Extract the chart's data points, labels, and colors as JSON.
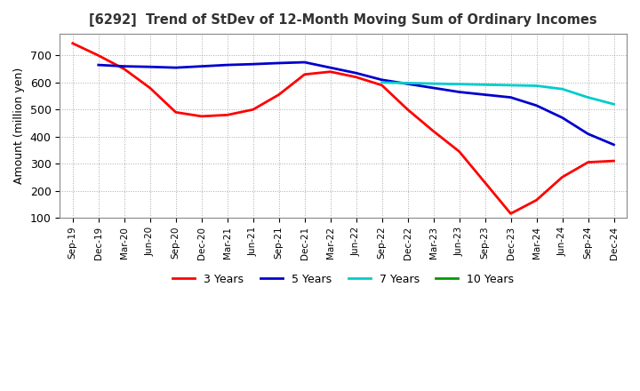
{
  "title": "[6292]  Trend of StDev of 12-Month Moving Sum of Ordinary Incomes",
  "ylabel": "Amount (million yen)",
  "ylim": [
    100,
    780
  ],
  "yticks": [
    100,
    200,
    300,
    400,
    500,
    600,
    700
  ],
  "background_color": "#ffffff",
  "plot_bg_color": "#ffffff",
  "grid_color": "#888888",
  "x_labels": [
    "Sep-19",
    "Dec-19",
    "Mar-20",
    "Jun-20",
    "Sep-20",
    "Dec-20",
    "Mar-21",
    "Jun-21",
    "Sep-21",
    "Dec-21",
    "Mar-22",
    "Jun-22",
    "Sep-22",
    "Dec-22",
    "Mar-23",
    "Jun-23",
    "Sep-23",
    "Dec-23",
    "Mar-24",
    "Jun-24",
    "Sep-24",
    "Dec-24"
  ],
  "series": {
    "3 Years": {
      "color": "#ff0000",
      "values": [
        745,
        700,
        650,
        580,
        490,
        475,
        480,
        500,
        555,
        630,
        640,
        620,
        590,
        500,
        420,
        345,
        230,
        115,
        165,
        250,
        305,
        310
      ]
    },
    "5 Years": {
      "color": "#0000cc",
      "values": [
        null,
        665,
        660,
        658,
        655,
        660,
        665,
        668,
        672,
        675,
        655,
        635,
        610,
        595,
        580,
        565,
        555,
        545,
        515,
        470,
        410,
        370
      ]
    },
    "7 Years": {
      "color": "#00cccc",
      "values": [
        null,
        null,
        null,
        null,
        null,
        null,
        null,
        null,
        null,
        null,
        null,
        null,
        600,
        598,
        596,
        594,
        592,
        590,
        588,
        576,
        545,
        520
      ]
    },
    "10 Years": {
      "color": "#009900",
      "values": [
        null,
        null,
        null,
        null,
        null,
        null,
        null,
        null,
        null,
        null,
        null,
        null,
        null,
        null,
        null,
        null,
        null,
        null,
        null,
        null,
        null,
        null
      ]
    }
  },
  "legend_labels": [
    "3 Years",
    "5 Years",
    "7 Years",
    "10 Years"
  ],
  "legend_colors": [
    "#ff0000",
    "#0000cc",
    "#00cccc",
    "#009900"
  ]
}
